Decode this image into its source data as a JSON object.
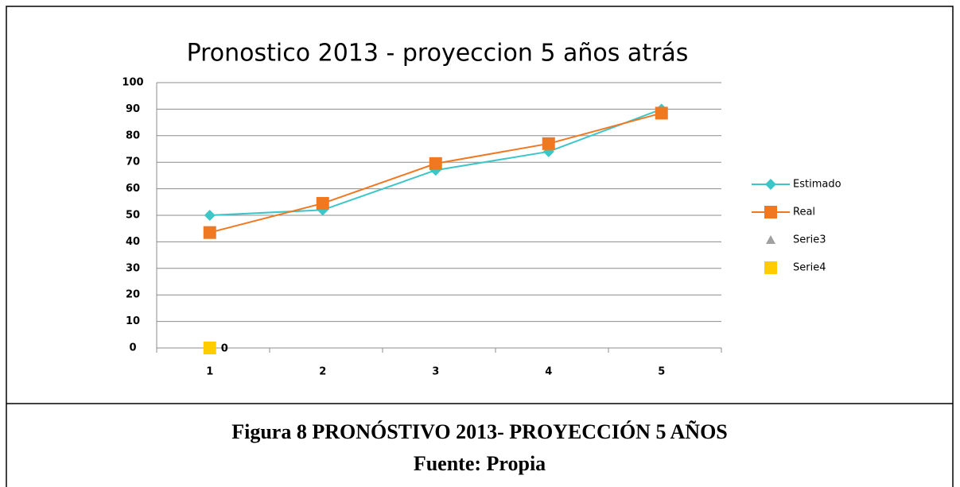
{
  "chart_data": {
    "type": "line",
    "title": "Pronostico 2013 - proyeccion 5 años atrás",
    "categories": [
      "1",
      "2",
      "3",
      "4",
      "5"
    ],
    "series": [
      {
        "name": "Estimado",
        "color": "#3cc6c8",
        "marker": "diamond",
        "values": [
          50,
          52,
          67,
          74,
          90
        ]
      },
      {
        "name": "Real",
        "color": "#f07820",
        "marker": "square",
        "values": [
          43.5,
          54.5,
          69.5,
          77,
          88.5
        ]
      },
      {
        "name": "Serie3",
        "color": "#a0a0a0",
        "marker": "triangle",
        "values": [
          null,
          null,
          null,
          null,
          null
        ]
      },
      {
        "name": "Serie4",
        "color": "#ffcc00",
        "marker": "square",
        "values": [
          0,
          null,
          null,
          null,
          null
        ]
      }
    ],
    "ylim": [
      0,
      100
    ],
    "yticks": [
      0,
      10,
      20,
      30,
      40,
      50,
      60,
      70,
      80,
      90,
      100
    ],
    "grid": true,
    "legend": "right"
  },
  "caption": {
    "title": "Figura 8 PRONÓSTIVO 2013- PROYECCIÓN 5 AÑOS",
    "source": "Fuente: Propia"
  }
}
